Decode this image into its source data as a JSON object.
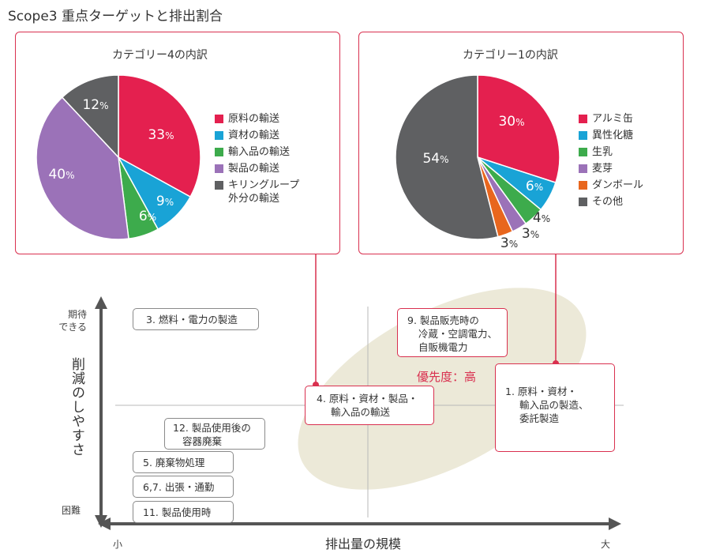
{
  "page": {
    "title": "Scope3 重点ターゲットと排出割合"
  },
  "colors": {
    "accent": "#d9304f",
    "ellipse": "#ece9d8"
  },
  "chart_data": [
    {
      "type": "pie",
      "title": "カテゴリー4の内訳",
      "slices": [
        {
          "label": "原料の輸送",
          "value": 33,
          "pct": "%",
          "color": "#e4204f"
        },
        {
          "label": "資材の輸送",
          "value": 9,
          "pct": "%",
          "color": "#19a3d6"
        },
        {
          "label": "輸入品の輸送",
          "value": 6,
          "pct": "%",
          "color": "#3dab4c"
        },
        {
          "label": "製品の輸送",
          "value": 40,
          "pct": "%",
          "color": "#9b72b8"
        },
        {
          "label": "キリングループ外分の輸送",
          "label_lines": [
            "キリングループ",
            "外分の輸送"
          ],
          "value": 12,
          "pct": "%",
          "color": "#5f6062"
        }
      ]
    },
    {
      "type": "pie",
      "title": "カテゴリー1の内訳",
      "slices": [
        {
          "label": "アルミ缶",
          "value": 30,
          "pct": "%",
          "color": "#e4204f"
        },
        {
          "label": "異性化糖",
          "value": 6,
          "pct": "%",
          "color": "#19a3d6"
        },
        {
          "label": "生乳",
          "value": 4,
          "pct": "%",
          "color": "#3dab4c"
        },
        {
          "label": "麦芽",
          "value": 3,
          "pct": "%",
          "color": "#9b72b8"
        },
        {
          "label": "ダンボール",
          "value": 3,
          "pct": "%",
          "color": "#e8661e"
        },
        {
          "label": "その他",
          "value": 54,
          "pct": "%",
          "color": "#5f6062"
        }
      ]
    }
  ],
  "matrix": {
    "y_axis_label": "削減のしやすさ",
    "y_top": [
      "期待",
      "できる"
    ],
    "y_bottom": "困難",
    "x_axis_label": "排出量の規模",
    "x_left": "小",
    "x_right": "大",
    "priority_label": "優先度：高",
    "items": {
      "i3": "3. 燃料・電力の製造",
      "i9": [
        "9. 製品販売時の",
        "冷蔵・空調電力、",
        "自販機電力"
      ],
      "i4": [
        "4. 原料・資材・製品・",
        "輸入品の輸送"
      ],
      "i1": [
        "1. 原料・資材・",
        "輸入品の製造、",
        "委託製造"
      ],
      "i12": [
        "12. 製品使用後の",
        "容器廃棄"
      ],
      "i5": "5. 廃棄物処理",
      "i67": "6,7. 出張・通勤",
      "i11": "11. 製品使用時"
    }
  }
}
